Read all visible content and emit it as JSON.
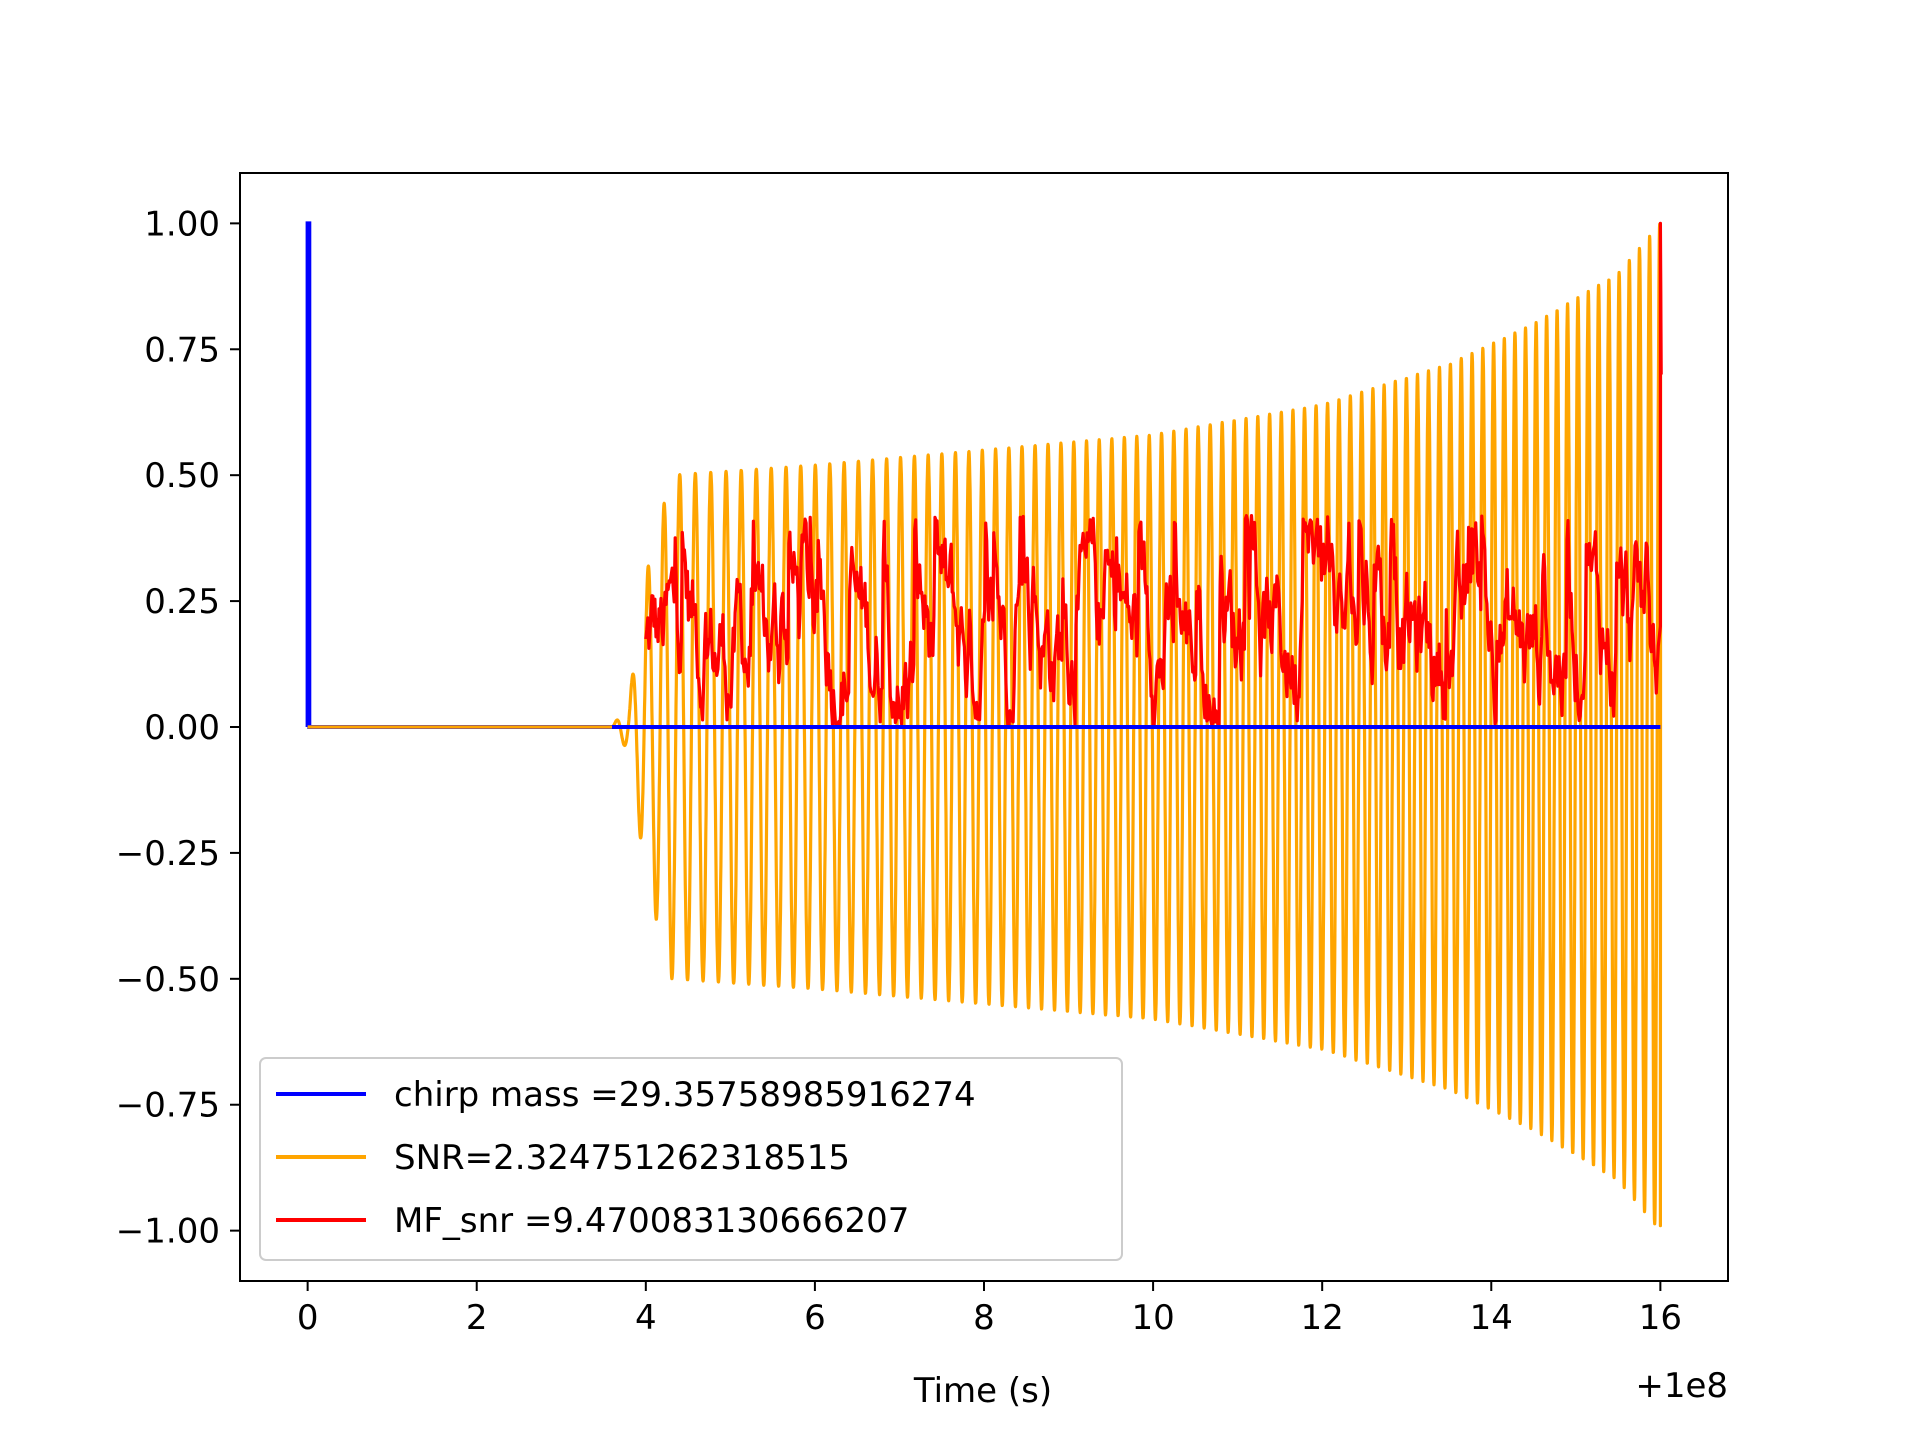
{
  "chart_data": {
    "type": "line",
    "title": "",
    "xlabel": "Time (s)",
    "ylabel": "",
    "x_offset_label": "+1e8",
    "xlim": [
      -0.8,
      16.8
    ],
    "ylim": [
      -1.1,
      1.1
    ],
    "x_ticks": [
      0,
      2,
      4,
      6,
      8,
      10,
      12,
      14,
      16
    ],
    "x_tick_labels": [
      "0",
      "2",
      "4",
      "6",
      "8",
      "10",
      "12",
      "14",
      "16"
    ],
    "y_ticks": [
      1.0,
      0.75,
      0.5,
      0.25,
      0.0,
      -0.25,
      -0.5,
      -0.75,
      -1.0
    ],
    "y_tick_labels": [
      "1.00",
      "0.75",
      "0.50",
      "0.25",
      "0.00",
      "−0.25",
      "−0.50",
      "−0.75",
      "−1.00"
    ],
    "grid": false,
    "legend_position": "lower-left",
    "series": [
      {
        "name": "chirp mass =29.35758985916274",
        "color": "#0000ff",
        "shape": "step spike at t=0 from 0 to 1, then 0",
        "points": [
          [
            0.0,
            0.0
          ],
          [
            0.0,
            1.0
          ],
          [
            0.02,
            1.0
          ],
          [
            0.02,
            0.0
          ],
          [
            16.0,
            0.0
          ]
        ]
      },
      {
        "name": "SNR=2.324751262318515",
        "color": "#ffa500",
        "shape": "chirp waveform: zero until ~3.6 s, ramps to amplitude ~0.5 by ~4.4 s, grows to ~1.0 at 16 s",
        "envelope": [
          [
            0.0,
            0.0
          ],
          [
            3.6,
            0.0
          ],
          [
            3.8,
            0.05
          ],
          [
            4.0,
            0.3
          ],
          [
            4.3,
            0.5
          ],
          [
            6.0,
            0.52
          ],
          [
            8.0,
            0.55
          ],
          [
            10.0,
            0.58
          ],
          [
            12.0,
            0.64
          ],
          [
            13.5,
            0.72
          ],
          [
            14.5,
            0.8
          ],
          [
            15.5,
            0.9
          ],
          [
            16.0,
            1.0
          ]
        ]
      },
      {
        "name": "MF_snr =9.470083130666207",
        "color": "#ff0000",
        "shape": "noisy matched-filter output between ~0.0 and ~0.4 from 4 s to 16 s, spike to 1.0 at 16 s",
        "range": [
          0.0,
          0.42
        ],
        "peak": [
          16.0,
          1.0
        ]
      }
    ]
  }
}
